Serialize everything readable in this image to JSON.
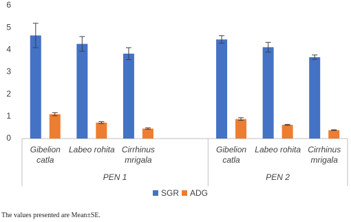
{
  "chart_data": {
    "type": "bar",
    "groups": [
      {
        "label": "PEN 1",
        "categories": [
          "Gibelion catla",
          "Labeo rohita",
          "Cirrhinus mrigala",
          null
        ]
      },
      {
        "label": "PEN 2",
        "categories": [
          "Gibelion catla",
          "Labeo rohita",
          "Cirrhinus mrigala"
        ]
      }
    ],
    "series": [
      {
        "name": "SGR",
        "color": "#4472c4",
        "values": [
          4.65,
          4.27,
          3.83,
          null,
          4.47,
          4.12,
          3.67
        ],
        "errors": [
          0.55,
          0.33,
          0.27,
          null,
          0.17,
          0.22,
          0.1
        ]
      },
      {
        "name": "ADG",
        "color": "#ed7d31",
        "values": [
          1.1,
          0.72,
          0.45,
          null,
          0.88,
          0.62,
          0.38
        ],
        "errors": [
          0.07,
          0.04,
          0.03,
          null,
          0.06,
          0.02,
          0.02
        ]
      }
    ],
    "ylim": [
      0,
      6
    ],
    "yticks": [
      0,
      1,
      2,
      3,
      4,
      5,
      6
    ],
    "grid": false,
    "legend": "bottom",
    "note": "The values presented are Mean±SE."
  }
}
